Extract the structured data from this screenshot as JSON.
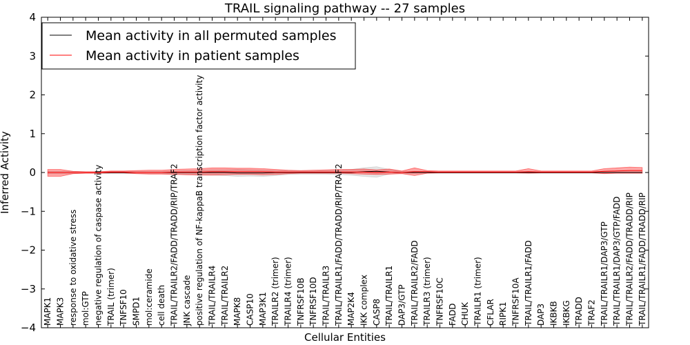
{
  "chart_data": {
    "type": "line",
    "title": "TRAIL signaling pathway -- 27 samples",
    "xlabel": "Cellular Entities",
    "ylabel": "Inferred Activity",
    "ylim": [
      -4,
      4
    ],
    "yticks": [
      -4,
      -3,
      -2,
      -1,
      0,
      1,
      2,
      3,
      4
    ],
    "ytick_labels": [
      "−4",
      "−3",
      "−2",
      "−1",
      "0",
      "1",
      "2",
      "3",
      "4"
    ],
    "grid": false,
    "legend_position": "top-left",
    "categories": [
      "MAPK1",
      "MAPK3",
      "response to oxidative stress",
      "mol:GTP",
      "negative regulation of caspase activity",
      "TRAIL (trimer)",
      "TNFSF10",
      "SMPD1",
      "mol:ceramide",
      "cell death",
      "TRAIL/TRAILR2/FADD/TRADD/RIP/TRAF2",
      "JNK cascade",
      "positive regulation of NF-kappaB transcription factor activity",
      "TRAIL/TRAILR4",
      "TRAIL/TRAILR2",
      "MAPK8",
      "CASP10",
      "MAP3K1",
      "TRAILR2 (trimer)",
      "TRAILR4 (trimer)",
      "TNFRSF10B",
      "TNFRSF10D",
      "TRAIL/TRAILR3",
      "TRAIL/TRAILR1/FADD/TRADD/RIP/TRAF2",
      "MAP2K4",
      "IKK complex",
      "CASP8",
      "TRAIL/TRAILR1",
      "DAP3/GTP",
      "TRAIL/TRAILR2/FADD",
      "TRAILR3 (trimer)",
      "TNFRSF10C",
      "FADD",
      "CHUK",
      "TRAILR1 (trimer)",
      "CFLAR",
      "RIPK1",
      "TNFRSF10A",
      "TRAIL/TRAILR1/FADD",
      "DAP3",
      "IKBKB",
      "IKBKG",
      "TRADD",
      "TRAF2",
      "TRAIL/TRAILR1/DAP3/GTP",
      "TRAIL/TRAILR1/DAP3/GTP/FADD",
      "TRAIL/TRAILR2/FADD/TRADD/RIP",
      "TRAIL/TRAILR1/FADD/TRADD/RIP"
    ],
    "series": [
      {
        "name": "Mean activity in all permuted samples",
        "color": "#000000",
        "values": [
          0.0,
          0.0,
          0.0,
          0.0,
          0.0,
          0.0,
          0.0,
          0.0,
          0.0,
          0.0,
          0.0,
          0.0,
          0.0,
          0.0,
          0.0,
          -0.01,
          -0.01,
          -0.01,
          0.0,
          0.0,
          0.0,
          0.0,
          0.0,
          0.0,
          0.0,
          0.02,
          0.03,
          0.01,
          0.0,
          0.0,
          0.0,
          0.0,
          0.0,
          0.0,
          0.0,
          0.0,
          0.0,
          0.0,
          0.0,
          0.0,
          0.0,
          0.0,
          0.0,
          0.0,
          0.0,
          0.0,
          0.0,
          0.0
        ],
        "band_low": [
          -0.03,
          -0.03,
          -0.03,
          -0.02,
          -0.02,
          -0.03,
          -0.03,
          -0.03,
          -0.03,
          -0.03,
          -0.04,
          -0.05,
          -0.06,
          -0.07,
          -0.08,
          -0.1,
          -0.09,
          -0.1,
          -0.08,
          -0.05,
          -0.04,
          -0.04,
          -0.04,
          -0.05,
          -0.07,
          -0.1,
          -0.12,
          -0.04,
          -0.02,
          -0.02,
          -0.02,
          -0.02,
          -0.02,
          -0.02,
          -0.02,
          -0.02,
          -0.02,
          -0.02,
          -0.02,
          -0.02,
          -0.02,
          -0.02,
          -0.02,
          -0.02,
          -0.02,
          -0.02,
          -0.02,
          -0.02
        ],
        "band_high": [
          0.03,
          0.03,
          0.03,
          0.02,
          0.02,
          0.03,
          0.03,
          0.03,
          0.03,
          0.03,
          0.04,
          0.05,
          0.06,
          0.07,
          0.07,
          0.08,
          0.07,
          0.06,
          0.05,
          0.05,
          0.04,
          0.04,
          0.05,
          0.06,
          0.08,
          0.12,
          0.15,
          0.08,
          0.03,
          0.03,
          0.02,
          0.02,
          0.02,
          0.02,
          0.02,
          0.02,
          0.02,
          0.02,
          0.02,
          0.02,
          0.02,
          0.02,
          0.02,
          0.02,
          0.02,
          0.02,
          0.02,
          0.02
        ]
      },
      {
        "name": "Mean activity in patient samples",
        "color": "#ff0000",
        "values": [
          0.0,
          0.0,
          0.0,
          0.0,
          0.0,
          0.01,
          0.01,
          0.0,
          0.0,
          0.0,
          0.01,
          0.01,
          0.01,
          0.02,
          0.02,
          0.02,
          0.02,
          0.02,
          0.01,
          0.01,
          0.01,
          0.01,
          0.01,
          0.01,
          0.01,
          0.01,
          0.0,
          0.01,
          0.0,
          0.02,
          0.02,
          0.01,
          0.01,
          0.01,
          0.01,
          0.01,
          0.01,
          0.01,
          0.02,
          0.01,
          0.01,
          0.01,
          0.01,
          0.01,
          0.03,
          0.04,
          0.05,
          0.05
        ],
        "band_low": [
          -0.1,
          -0.1,
          -0.03,
          -0.02,
          -0.02,
          -0.01,
          -0.01,
          -0.03,
          -0.04,
          -0.04,
          -0.05,
          -0.06,
          -0.07,
          -0.07,
          -0.06,
          -0.05,
          -0.05,
          -0.06,
          -0.05,
          -0.03,
          -0.02,
          -0.02,
          -0.02,
          -0.02,
          -0.03,
          -0.04,
          -0.05,
          -0.04,
          -0.03,
          -0.08,
          -0.02,
          -0.01,
          -0.01,
          -0.01,
          -0.01,
          -0.01,
          -0.01,
          -0.01,
          -0.02,
          -0.01,
          -0.01,
          -0.01,
          -0.01,
          -0.01,
          -0.03,
          -0.02,
          -0.02,
          -0.02
        ],
        "band_high": [
          0.08,
          0.08,
          0.03,
          0.02,
          0.02,
          0.04,
          0.04,
          0.05,
          0.06,
          0.06,
          0.08,
          0.09,
          0.1,
          0.12,
          0.12,
          0.11,
          0.11,
          0.1,
          0.08,
          0.06,
          0.05,
          0.06,
          0.07,
          0.08,
          0.08,
          0.09,
          0.07,
          0.09,
          0.04,
          0.12,
          0.05,
          0.04,
          0.04,
          0.04,
          0.04,
          0.04,
          0.04,
          0.04,
          0.1,
          0.04,
          0.04,
          0.04,
          0.04,
          0.04,
          0.1,
          0.12,
          0.14,
          0.13
        ]
      }
    ]
  }
}
